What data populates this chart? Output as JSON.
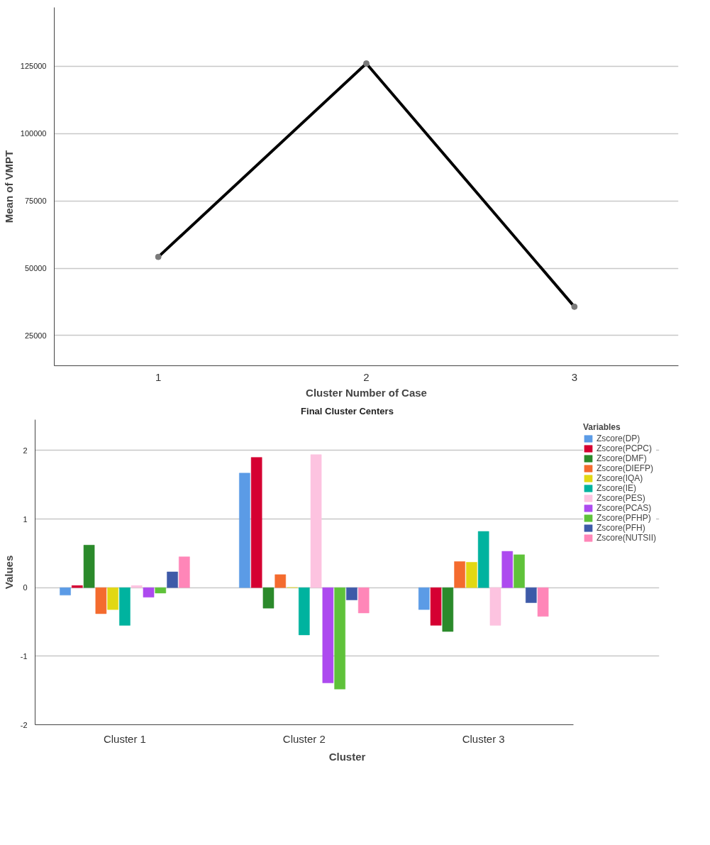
{
  "chart_data": [
    {
      "type": "line",
      "xlabel": "Cluster Number of Case",
      "ylabel": "Mean of VMPT",
      "categories": [
        "1",
        "2",
        "3"
      ],
      "series": [
        {
          "color": "#000000",
          "values": [
            54200,
            126000,
            35700
          ]
        }
      ],
      "ylim": [
        13800,
        146800
      ],
      "yticks": [
        25000,
        50000,
        75000,
        100000,
        125000
      ],
      "grid": "y",
      "marker": "circle",
      "line_style": "solid"
    },
    {
      "type": "bar",
      "title": "Final Cluster Centers",
      "xlabel": "Cluster",
      "ylabel": "Values",
      "legend_title": "Variables",
      "legend": "right",
      "categories": [
        "Cluster 1",
        "Cluster 2",
        "Cluster 3"
      ],
      "series": [
        {
          "name": "Zscore(DP)",
          "color": "#5b9be6",
          "values": [
            -0.11,
            1.67,
            -0.32
          ]
        },
        {
          "name": "Zscore(PCPC)",
          "color": "#d50032",
          "values": [
            0.03,
            1.9,
            -0.55
          ]
        },
        {
          "name": "Zscore(DMF)",
          "color": "#2b8a2b",
          "values": [
            0.62,
            -0.3,
            -0.64
          ]
        },
        {
          "name": "Zscore(DIEFP)",
          "color": "#f46b2e",
          "values": [
            -0.38,
            0.19,
            0.38
          ]
        },
        {
          "name": "Zscore(IQA)",
          "color": "#e2d813",
          "values": [
            -0.32,
            0,
            0.37
          ]
        },
        {
          "name": "Zscore(IE)",
          "color": "#00b39f",
          "values": [
            -0.55,
            -0.69,
            0.82
          ]
        },
        {
          "name": "Zscore(PES)",
          "color": "#fdc3e0",
          "values": [
            0.03,
            1.94,
            -0.55
          ]
        },
        {
          "name": "Zscore(PCAS)",
          "color": "#ad4aef",
          "values": [
            -0.14,
            -1.39,
            0.53
          ]
        },
        {
          "name": "Zscore(PFHP)",
          "color": "#5fc23a",
          "values": [
            -0.08,
            -1.48,
            0.48
          ]
        },
        {
          "name": "Zscore(PFH)",
          "color": "#3e5aa8",
          "values": [
            0.23,
            -0.18,
            -0.22
          ]
        },
        {
          "name": "Zscore(NUTSII)",
          "color": "#ff86b8",
          "values": [
            0.45,
            -0.37,
            -0.42
          ]
        }
      ],
      "ylim": [
        -2,
        2.45
      ],
      "yticks": [
        -2,
        -1,
        0,
        1,
        2
      ],
      "grid": "y"
    }
  ]
}
